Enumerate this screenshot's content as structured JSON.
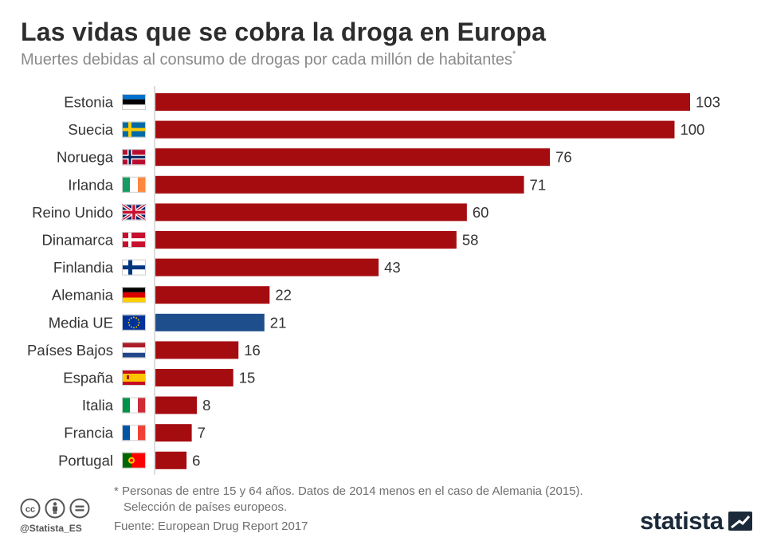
{
  "header": {
    "title": "Las vidas que se cobra la droga en Europa",
    "subtitle": "Muertes debidas al consumo de drogas por cada millón de habitantes",
    "subtitle_mark": "*"
  },
  "chart_data": {
    "type": "bar",
    "orientation": "horizontal",
    "title": "Las vidas que se cobra la droga en Europa",
    "xlabel": "",
    "ylabel": "",
    "xlim": [
      0,
      103
    ],
    "grid": false,
    "categories": [
      "Estonia",
      "Suecia",
      "Noruega",
      "Irlanda",
      "Reino Unido",
      "Dinamarca",
      "Finlandia",
      "Alemania",
      "Media UE",
      "Países Bajos",
      "España",
      "Italia",
      "Francia",
      "Portugal"
    ],
    "values": [
      103,
      100,
      76,
      71,
      60,
      58,
      43,
      22,
      21,
      16,
      15,
      8,
      7,
      6
    ],
    "flags": [
      "estonia-flag-icon",
      "sweden-flag-icon",
      "norway-flag-icon",
      "ireland-flag-icon",
      "uk-flag-icon",
      "denmark-flag-icon",
      "finland-flag-icon",
      "germany-flag-icon",
      "eu-flag-icon",
      "netherlands-flag-icon",
      "spain-flag-icon",
      "italy-flag-icon",
      "france-flag-icon",
      "portugal-flag-icon"
    ],
    "bar_colors": [
      "#a50c10",
      "#a50c10",
      "#a50c10",
      "#a50c10",
      "#a50c10",
      "#a50c10",
      "#a50c10",
      "#a50c10",
      "#1f4e8c",
      "#a50c10",
      "#a50c10",
      "#a50c10",
      "#a50c10",
      "#a50c10"
    ]
  },
  "footer": {
    "note_line1": "* Personas de entre 15 y 64 años. Datos de 2014 menos en el caso de Alemania (2015).",
    "note_line2": "Selección de países europeos.",
    "source": "Fuente: European Drug Report 2017",
    "handle": "@Statista_ES",
    "brand": "statista",
    "license_icons": [
      "cc-icon",
      "by-icon",
      "nd-icon"
    ]
  },
  "colors": {
    "bar": "#a50c10",
    "highlight": "#1f4e8c",
    "title": "#2d2d2d",
    "subtitle": "#8a8a8a"
  }
}
